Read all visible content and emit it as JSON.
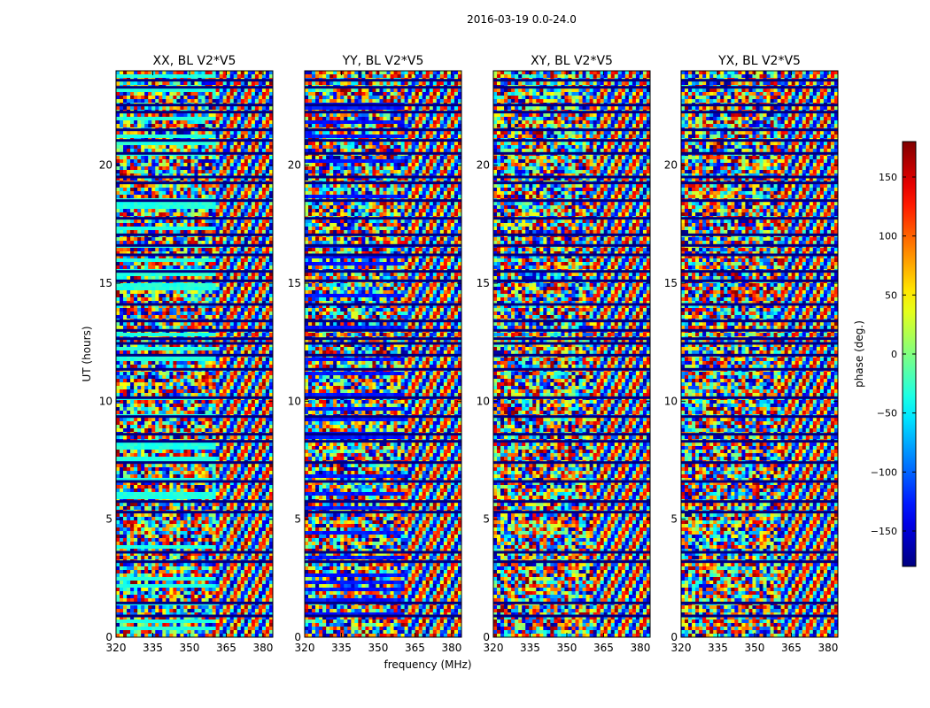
{
  "figure": {
    "suptitle": "2016-03-19 0.0-24.0",
    "xlabel": "frequency (MHz)",
    "ylabel": "UT (hours)"
  },
  "chart_data": {
    "type": "heatmap",
    "title": "2016-03-19 0.0-24.0",
    "xlabel": "frequency (MHz)",
    "ylabel": "UT (hours)",
    "xlim": [
      320,
      384
    ],
    "ylim": [
      0,
      24
    ],
    "xticks": [
      320,
      335,
      350,
      365,
      380
    ],
    "yticks": [
      0,
      5,
      10,
      15,
      20
    ],
    "colormap": "jet",
    "colorbar": {
      "label": "phase (deg.)",
      "range": [
        -180,
        180
      ],
      "ticks": [
        -150,
        -100,
        -50,
        0,
        50,
        100,
        150
      ],
      "tick_labels": [
        "−150",
        "−100",
        "−50",
        "0",
        "50",
        "100",
        "150"
      ]
    },
    "panels": [
      {
        "title": "XX, BL V2*V5",
        "polarization": "XX",
        "baseline": "V2*V5"
      },
      {
        "title": "YY, BL V2*V5",
        "polarization": "YY",
        "baseline": "V2*V5"
      },
      {
        "title": "XY, BL V2*V5",
        "polarization": "XY",
        "baseline": "V2*V5"
      },
      {
        "title": "YX, BL V2*V5",
        "polarization": "YX",
        "baseline": "V2*V5"
      }
    ],
    "gaps_ut_hours": [
      0.9,
      1.45,
      3.2,
      3.6,
      5.3,
      5.75,
      6.6,
      7.4,
      8.3,
      8.6,
      9.35,
      10.15,
      11.35,
      11.95,
      12.45,
      12.65,
      13.0,
      13.4,
      14.1,
      15.1,
      15.5,
      16.2,
      16.6,
      17.05,
      17.75,
      18.5,
      19.25,
      19.5,
      20.5,
      21.05,
      21.5,
      22.25,
      22.55,
      23.3,
      23.6
    ]
  }
}
